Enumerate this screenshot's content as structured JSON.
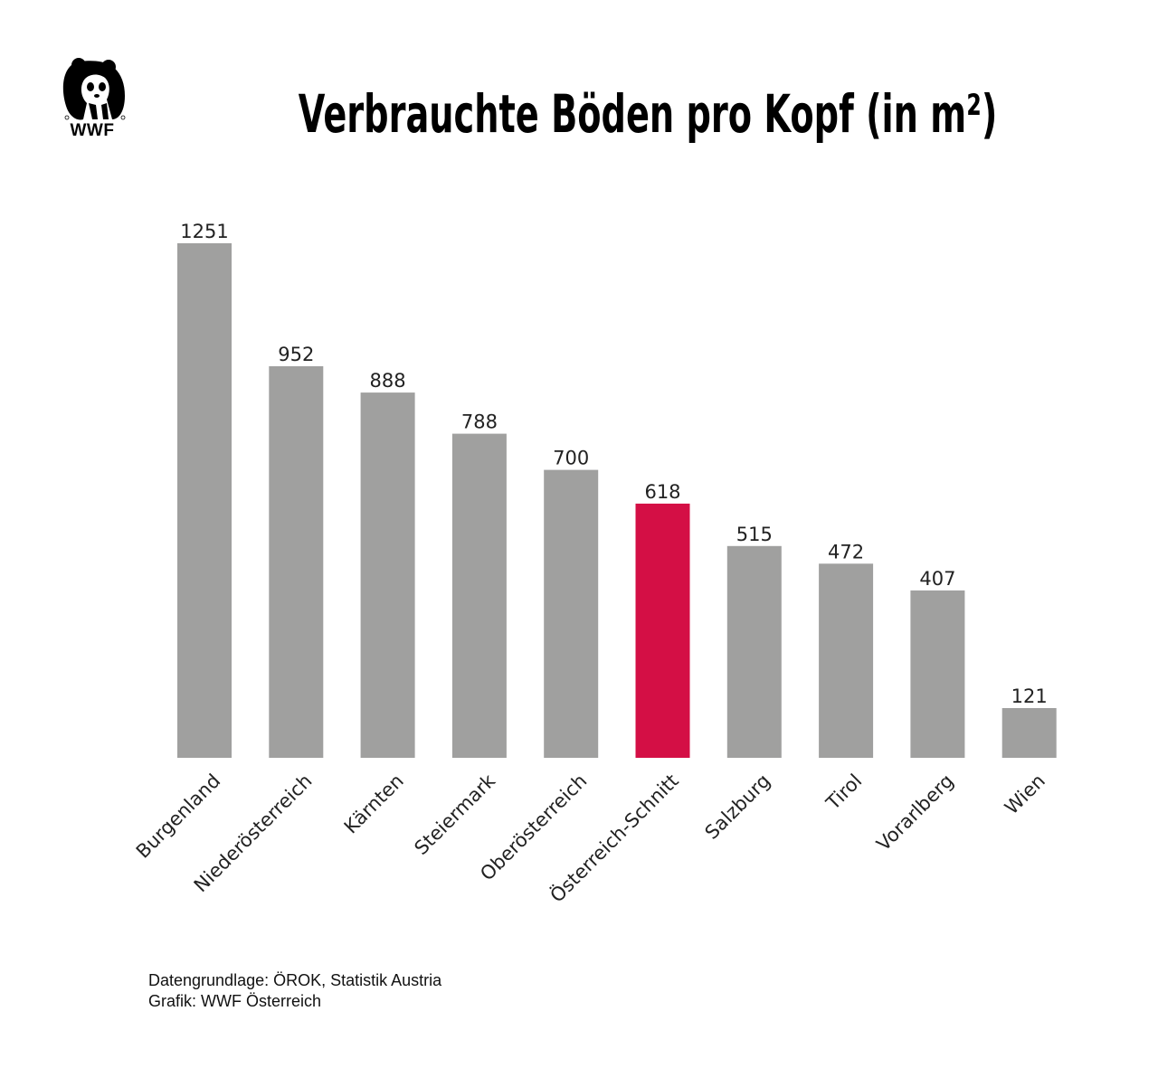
{
  "logo": {
    "icon": "panda-icon",
    "text": "WWF"
  },
  "title": "Verbrauchte Böden pro Kopf (in m²)",
  "colors": {
    "bar": "#a0a09f",
    "highlight": "#d40f45"
  },
  "chart_data": {
    "type": "bar",
    "title": "Verbrauchte Böden pro Kopf (in m²)",
    "categories": [
      "Burgenland",
      "Niederösterreich",
      "Kärnten",
      "Steiermark",
      "Oberösterreich",
      "Österreich-Schnitt",
      "Salzburg",
      "Tirol",
      "Vorarlberg",
      "Wien"
    ],
    "values": [
      1251,
      952,
      888,
      788,
      700,
      618,
      515,
      472,
      407,
      121
    ],
    "highlight_category": "Österreich-Schnitt",
    "xlabel": "",
    "ylabel": "",
    "ylim": [
      0,
      1251
    ],
    "grid": false,
    "legend": "none"
  },
  "footer": {
    "source": "Datengrundlage: ÖROK, Statistik Austria",
    "credit": "Grafik: WWF Österreich"
  }
}
